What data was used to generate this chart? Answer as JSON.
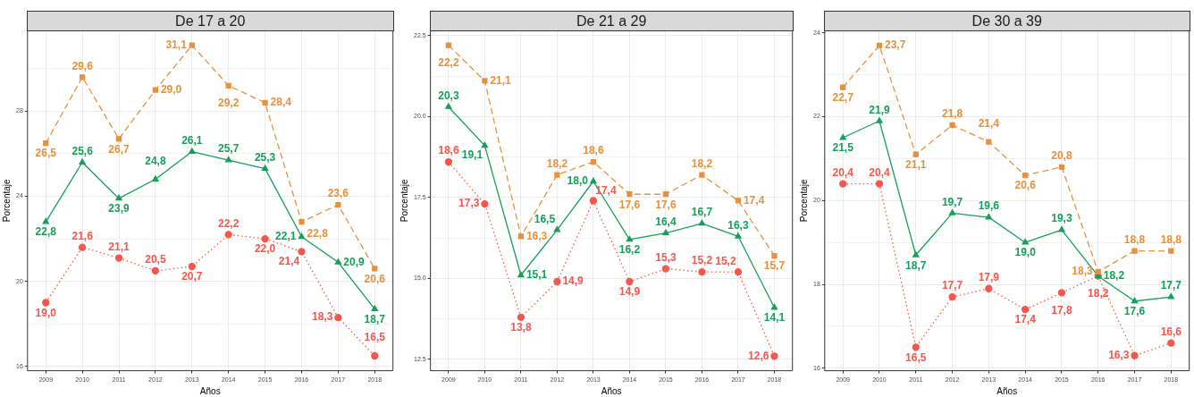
{
  "chart_data": [
    {
      "type": "line",
      "title": "De 17 a 20",
      "xlabel": "Años",
      "ylabel": "Porcentaje",
      "categories": [
        "2009",
        "2010",
        "2011",
        "2012",
        "2013",
        "2014",
        "2015",
        "2016",
        "2017",
        "2018"
      ],
      "ylim": [
        15.8,
        31.8
      ],
      "yticks": [
        16,
        {
          "value": 18,
          "label": null
        },
        20,
        {
          "value": 22,
          "label": null
        },
        24,
        {
          "value": 26,
          "label": null
        },
        28,
        {
          "value": 30,
          "label": null
        }
      ],
      "grid": true,
      "legend": false,
      "series": [
        {
          "color": "#e8913c",
          "marker": "square",
          "line_style": "dashed",
          "values": [
            26.5,
            29.6,
            26.7,
            29.0,
            31.1,
            29.2,
            28.4,
            22.8,
            23.6,
            20.6
          ],
          "value_labels": [
            "26,5",
            "29,6",
            "26,7",
            "29,0",
            "31,1",
            "29,2",
            "28,4",
            "22,8",
            "23,6",
            "20,6"
          ]
        },
        {
          "color": "#14a05a",
          "marker": "triangle",
          "line_style": "solid",
          "values": [
            22.8,
            25.6,
            23.9,
            24.8,
            26.1,
            25.7,
            25.3,
            22.1,
            20.9,
            18.7
          ],
          "value_labels": [
            "22,8",
            "25,6",
            "23,9",
            "24,8",
            "26,1",
            "25,7",
            "25,3",
            "22,1",
            "20,9",
            "18,7"
          ]
        },
        {
          "color": "#f8564b",
          "marker": "circle",
          "line_style": "dotted",
          "values": [
            19.0,
            21.6,
            21.1,
            20.5,
            20.7,
            22.2,
            22.0,
            21.4,
            18.3,
            16.5
          ],
          "value_labels": [
            "19,0",
            "21,6",
            "21,1",
            "20,5",
            "20,7",
            "22,2",
            "22,0",
            "21,4",
            "18,3",
            "16,5"
          ]
        }
      ]
    },
    {
      "type": "line",
      "title": "De 21 a 29",
      "xlabel": "Años",
      "ylabel": "Porcentaje",
      "categories": [
        "2009",
        "2010",
        "2011",
        "2012",
        "2013",
        "2014",
        "2015",
        "2016",
        "2017",
        "2018"
      ],
      "ylim": [
        12.15,
        22.66
      ],
      "yticks": [
        {
          "value": 12.5,
          "label": "12.5"
        },
        {
          "value": 13.75,
          "label": null
        },
        {
          "value": 15,
          "label": "15.0"
        },
        {
          "value": 16.25,
          "label": null
        },
        {
          "value": 17.5,
          "label": "17.5"
        },
        {
          "value": 18.75,
          "label": null
        },
        {
          "value": 20,
          "label": "20.0"
        },
        {
          "value": 21.25,
          "label": null
        },
        {
          "value": 22.5,
          "label": "22.5"
        }
      ],
      "grid": true,
      "legend": false,
      "series": [
        {
          "color": "#e8913c",
          "marker": "square",
          "line_style": "dashed",
          "values": [
            22.2,
            21.1,
            16.3,
            18.2,
            18.6,
            17.6,
            17.6,
            18.2,
            17.4,
            15.7
          ],
          "value_labels": [
            "22,2",
            "21,1",
            "16,3",
            "18,2",
            "18,6",
            "17,6",
            "17,6",
            "18,2",
            "17,4",
            "15,7"
          ]
        },
        {
          "color": "#14a05a",
          "marker": "triangle",
          "line_style": "solid",
          "values": [
            20.3,
            19.1,
            15.1,
            16.5,
            18.0,
            16.2,
            16.4,
            16.7,
            16.3,
            14.1
          ],
          "value_labels": [
            "20,3",
            "19,1",
            "15,1",
            "16,5",
            "18,0",
            "16,2",
            "16,4",
            "16,7",
            "16,3",
            "14,1"
          ]
        },
        {
          "color": "#f8564b",
          "marker": "circle",
          "line_style": "dotted",
          "values": [
            18.6,
            17.3,
            13.8,
            14.9,
            17.4,
            14.9,
            15.3,
            15.2,
            15.2,
            12.6
          ],
          "value_labels": [
            "18,6",
            "17,3",
            "13,8",
            "14,9",
            "17,4",
            "14,9",
            "15,3",
            "15,2",
            "15,2",
            "12,6"
          ]
        }
      ]
    },
    {
      "type": "line",
      "title": "De 30 a 39",
      "xlabel": "Años",
      "ylabel": "Porcentaje",
      "categories": [
        "2009",
        "2010",
        "2011",
        "2012",
        "2013",
        "2014",
        "2015",
        "2016",
        "2017",
        "2018"
      ],
      "ylim": [
        15.94,
        24.06
      ],
      "yticks": [
        16,
        {
          "value": 17,
          "label": null
        },
        18,
        {
          "value": 19,
          "label": null
        },
        20,
        {
          "value": 21,
          "label": null
        },
        22,
        {
          "value": 23,
          "label": null
        },
        24
      ],
      "grid": true,
      "legend": false,
      "series": [
        {
          "color": "#e8913c",
          "marker": "square",
          "line_style": "dashed",
          "values": [
            22.7,
            23.7,
            21.1,
            21.8,
            21.4,
            20.6,
            20.8,
            18.3,
            18.8,
            18.8
          ],
          "value_labels": [
            "22,7",
            "23,7",
            "21,1",
            "21,8",
            "21,4",
            "20,6",
            "20,8",
            "18,3",
            "18,8",
            "18,8"
          ]
        },
        {
          "color": "#14a05a",
          "marker": "triangle",
          "line_style": "solid",
          "values": [
            21.5,
            21.9,
            18.7,
            19.7,
            19.6,
            19.0,
            19.3,
            18.2,
            17.6,
            17.7
          ],
          "value_labels": [
            "21,5",
            "21,9",
            "18,7",
            "19,7",
            "19,6",
            "19,0",
            "19,3",
            "18,2",
            "17,6",
            "17,7"
          ]
        },
        {
          "color": "#f8564b",
          "marker": "circle",
          "line_style": "dotted",
          "values": [
            20.4,
            20.4,
            16.5,
            17.7,
            17.9,
            17.4,
            17.8,
            18.2,
            16.3,
            16.6
          ],
          "value_labels": [
            "20,4",
            "20,4",
            "16,5",
            "17,7",
            "17,9",
            "17,4",
            "17,8",
            "18,2",
            "16,3",
            "16,6"
          ]
        }
      ]
    }
  ]
}
